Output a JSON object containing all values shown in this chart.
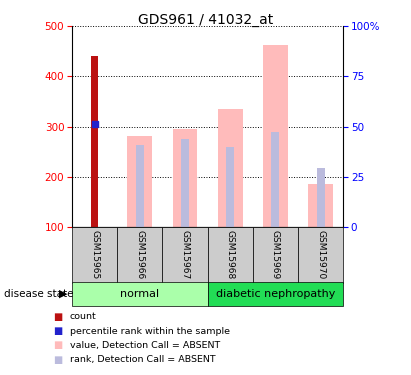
{
  "title": "GDS961 / 41032_at",
  "samples": [
    "GSM15965",
    "GSM15966",
    "GSM15967",
    "GSM15968",
    "GSM15969",
    "GSM15970"
  ],
  "count_values": [
    440,
    null,
    null,
    null,
    null,
    null
  ],
  "percentile_values": [
    305,
    null,
    null,
    null,
    null,
    null
  ],
  "absent_value_bars": [
    null,
    282,
    295,
    336,
    462,
    185
  ],
  "absent_rank_bars": [
    null,
    263,
    275,
    260,
    289,
    218
  ],
  "ylim": [
    100,
    500
  ],
  "yticks_left": [
    100,
    200,
    300,
    400,
    500
  ],
  "yticks_right": [
    0,
    25,
    50,
    75,
    100
  ],
  "count_color": "#bb1111",
  "percentile_color": "#2222cc",
  "absent_value_color": "#ffbbbb",
  "absent_rank_color": "#bbbbdd",
  "normal_color": "#aaffaa",
  "diabetic_color": "#22dd55",
  "sample_box_color": "#cccccc",
  "legend_items": [
    {
      "color": "#bb1111",
      "label": "count"
    },
    {
      "color": "#2222cc",
      "label": "percentile rank within the sample"
    },
    {
      "color": "#ffbbbb",
      "label": "value, Detection Call = ABSENT"
    },
    {
      "color": "#bbbbdd",
      "label": "rank, Detection Call = ABSENT"
    }
  ]
}
